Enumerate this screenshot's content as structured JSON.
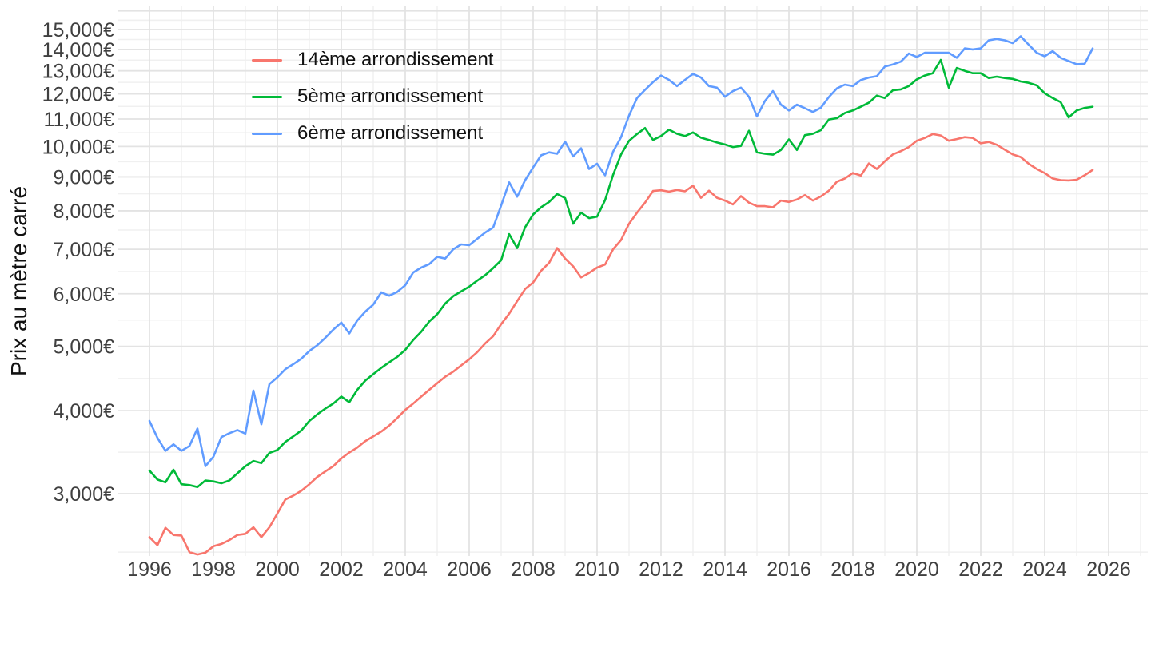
{
  "chart_data": {
    "type": "line",
    "title": "",
    "xlabel": "",
    "ylabel": "Prix au mètre carré",
    "x_unit": "year (quarterly points)",
    "x_start": 1996.0,
    "x_step": 0.25,
    "x_axis": {
      "tick_years": [
        1996,
        1998,
        2000,
        2002,
        2004,
        2006,
        2008,
        2010,
        2012,
        2014,
        2016,
        2018,
        2020,
        2022,
        2024,
        2026
      ],
      "minor_tick_years": [
        1995,
        1997,
        1999,
        2001,
        2003,
        2005,
        2007,
        2009,
        2011,
        2013,
        2015,
        2017,
        2019,
        2021,
        2023,
        2025,
        2027
      ],
      "range": [
        1994.8,
        2027.2
      ]
    },
    "y_axis": {
      "scale": "log10",
      "tick_values": [
        3000,
        4000,
        5000,
        6000,
        7000,
        8000,
        9000,
        10000,
        11000,
        12000,
        13000,
        14000,
        15000
      ],
      "tick_labels": [
        "3,000€",
        "4,000€",
        "5,000€",
        "6,000€",
        "7,000€",
        "8,000€",
        "9,000€",
        "10,000€",
        "11,000€",
        "12,000€",
        "13,000€",
        "14,000€",
        "15,000€"
      ],
      "unlabeled_major_values": [
        16000
      ],
      "range": [
        2380,
        16200
      ],
      "grid": true
    },
    "legend": {
      "position": "inside-top-left"
    },
    "series": [
      {
        "name": "14ème arrondissement",
        "color": "#F8766D",
        "values": [
          2580,
          2510,
          2665,
          2600,
          2595,
          2450,
          2430,
          2445,
          2500,
          2520,
          2555,
          2600,
          2610,
          2670,
          2580,
          2670,
          2800,
          2940,
          2980,
          3030,
          3100,
          3180,
          3240,
          3300,
          3390,
          3460,
          3520,
          3600,
          3660,
          3720,
          3800,
          3900,
          4010,
          4100,
          4200,
          4300,
          4400,
          4500,
          4580,
          4680,
          4780,
          4900,
          5050,
          5180,
          5400,
          5600,
          5850,
          6100,
          6240,
          6500,
          6680,
          7030,
          6780,
          6600,
          6350,
          6450,
          6570,
          6640,
          7000,
          7230,
          7650,
          7950,
          8230,
          8570,
          8590,
          8550,
          8600,
          8560,
          8730,
          8370,
          8580,
          8370,
          8290,
          8180,
          8420,
          8230,
          8130,
          8130,
          8100,
          8290,
          8250,
          8320,
          8450,
          8290,
          8410,
          8580,
          8850,
          8950,
          9120,
          9040,
          9430,
          9250,
          9500,
          9730,
          9840,
          9980,
          10200,
          10300,
          10440,
          10390,
          10200,
          10260,
          10330,
          10300,
          10110,
          10160,
          10060,
          9890,
          9730,
          9640,
          9420,
          9250,
          9120,
          8950,
          8900,
          8890,
          8910,
          9050,
          9220
        ]
      },
      {
        "name": "5ème arrondissement",
        "color": "#00BA38",
        "values": [
          3250,
          3150,
          3120,
          3260,
          3100,
          3090,
          3070,
          3140,
          3130,
          3110,
          3140,
          3220,
          3300,
          3360,
          3335,
          3455,
          3490,
          3590,
          3660,
          3735,
          3860,
          3950,
          4030,
          4100,
          4200,
          4120,
          4300,
          4440,
          4540,
          4640,
          4730,
          4820,
          4940,
          5110,
          5260,
          5450,
          5590,
          5800,
          5950,
          6050,
          6150,
          6280,
          6400,
          6560,
          6740,
          7380,
          7030,
          7560,
          7900,
          8100,
          8250,
          8480,
          8360,
          7650,
          7950,
          7800,
          7840,
          8300,
          9060,
          9730,
          10200,
          10440,
          10660,
          10230,
          10370,
          10600,
          10450,
          10370,
          10500,
          10310,
          10230,
          10140,
          10070,
          9980,
          10020,
          10560,
          9800,
          9750,
          9720,
          9880,
          10250,
          9880,
          10400,
          10450,
          10580,
          10980,
          11030,
          11230,
          11330,
          11480,
          11640,
          11930,
          11830,
          12150,
          12190,
          12330,
          12620,
          12790,
          12890,
          13500,
          12260,
          13130,
          13000,
          12890,
          12890,
          12680,
          12740,
          12680,
          12640,
          12530,
          12470,
          12360,
          12030,
          11830,
          11660,
          11060,
          11330,
          11430,
          11480
        ]
      },
      {
        "name": "6ème arrondissement",
        "color": "#619CFF",
        "values": [
          3860,
          3640,
          3480,
          3560,
          3480,
          3540,
          3760,
          3300,
          3410,
          3650,
          3700,
          3740,
          3695,
          4290,
          3815,
          4385,
          4490,
          4620,
          4700,
          4790,
          4920,
          5020,
          5150,
          5300,
          5430,
          5230,
          5470,
          5640,
          5780,
          6030,
          5960,
          6040,
          6180,
          6460,
          6570,
          6650,
          6820,
          6780,
          7000,
          7120,
          7100,
          7260,
          7420,
          7550,
          8150,
          8830,
          8400,
          8900,
          9300,
          9700,
          9800,
          9750,
          10170,
          9660,
          9940,
          9250,
          9420,
          9050,
          9820,
          10330,
          11130,
          11830,
          12170,
          12500,
          12790,
          12600,
          12330,
          12600,
          12860,
          12700,
          12330,
          12260,
          11880,
          12120,
          12260,
          11880,
          11100,
          11710,
          12120,
          11560,
          11330,
          11560,
          11420,
          11270,
          11440,
          11870,
          12230,
          12390,
          12330,
          12590,
          12700,
          12760,
          13190,
          13290,
          13420,
          13800,
          13640,
          13840,
          13840,
          13840,
          13840,
          13600,
          14050,
          14000,
          14050,
          14450,
          14520,
          14450,
          14310,
          14650,
          14230,
          13840,
          13670,
          13920,
          13600,
          13450,
          13300,
          13320,
          14050
        ]
      }
    ]
  }
}
